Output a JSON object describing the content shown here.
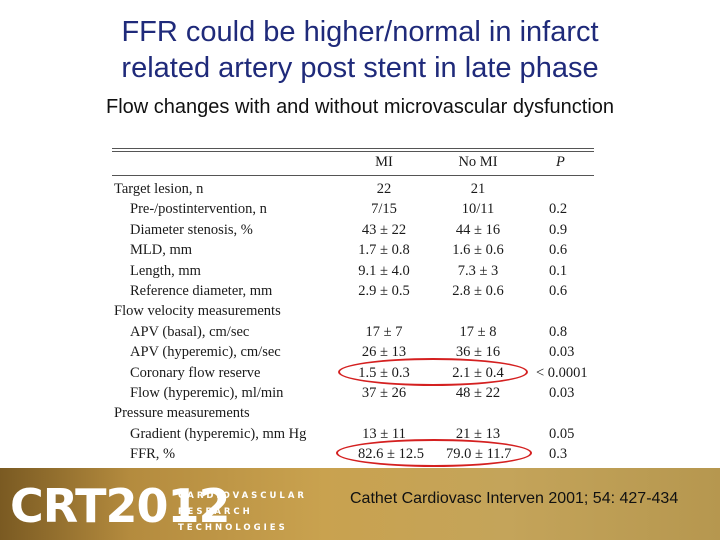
{
  "slide": {
    "title_line1": "FFR could be higher/normal in infarct",
    "title_line2": "related artery post stent in late phase",
    "subtitle": "Flow changes with and without microvascular dysfunction"
  },
  "table": {
    "headers": [
      "MI",
      "No MI",
      "P"
    ],
    "rows": [
      {
        "label": "Target lesion, n",
        "indent": 0,
        "mi": "22",
        "nomi": "21",
        "p": ""
      },
      {
        "label": "Pre-/postintervention, n",
        "indent": 1,
        "mi": "7/15",
        "nomi": "10/11",
        "p": "0.2"
      },
      {
        "label": "Diameter stenosis, %",
        "indent": 1,
        "mi": "43 ± 22",
        "nomi": "44 ± 16",
        "p": "0.9"
      },
      {
        "label": "MLD, mm",
        "indent": 1,
        "mi": "1.7 ± 0.8",
        "nomi": "1.6 ± 0.6",
        "p": "0.6"
      },
      {
        "label": "Length, mm",
        "indent": 1,
        "mi": "9.1 ± 4.0",
        "nomi": "7.3 ± 3",
        "p": "0.1"
      },
      {
        "label": "Reference diameter, mm",
        "indent": 1,
        "mi": "2.9 ± 0.5",
        "nomi": "2.8 ± 0.6",
        "p": "0.6"
      },
      {
        "label": "Flow velocity measurements",
        "indent": 0,
        "mi": "",
        "nomi": "",
        "p": ""
      },
      {
        "label": "APV (basal), cm/sec",
        "indent": 1,
        "mi": "17 ± 7",
        "nomi": "17 ± 8",
        "p": "0.8"
      },
      {
        "label": "APV (hyperemic), cm/sec",
        "indent": 1,
        "mi": "26 ± 13",
        "nomi": "36 ± 16",
        "p": "0.03"
      },
      {
        "label": "Coronary flow reserve",
        "indent": 1,
        "mi": "1.5 ± 0.3",
        "nomi": "2.1 ± 0.4",
        "p": "< 0.0001"
      },
      {
        "label": "Flow (hyperemic), ml/min",
        "indent": 1,
        "mi": "37 ± 26",
        "nomi": "48 ± 22",
        "p": "0.03"
      },
      {
        "label": "Pressure measurements",
        "indent": 0,
        "mi": "",
        "nomi": "",
        "p": ""
      },
      {
        "label": "Gradient (hyperemic), mm Hg",
        "indent": 1,
        "mi": "13 ± 11",
        "nomi": "21 ± 13",
        "p": "0.05"
      },
      {
        "label": "FFR, %",
        "indent": 1,
        "mi": "82.6 ± 12.5",
        "nomi": "79.0 ± 11.7",
        "p": "0.3"
      }
    ]
  },
  "footer": {
    "logo": "CRT2012",
    "logo_sub": [
      "CARDIOVASCULAR",
      "RESEARCH",
      "TECHNOLOGIES"
    ],
    "citation": "Cathet Cardiovasc Interven 2001; 54: 427-434"
  },
  "colors": {
    "title": "#1f2a7a",
    "highlight": "#d42020"
  }
}
